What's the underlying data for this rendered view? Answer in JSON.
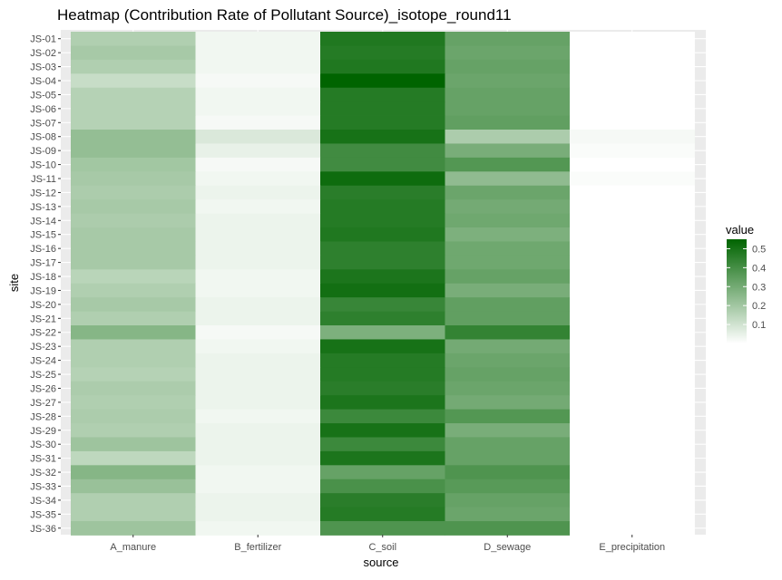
{
  "chart_data": {
    "type": "heatmap",
    "title": "Heatmap (Contribution Rate of Pollutant Source)_isotope_round11",
    "xlabel": "source",
    "ylabel": "site",
    "x_categories": [
      "A_manure",
      "B_fertilizer",
      "C_soil",
      "D_sewage",
      "E_precipitation"
    ],
    "y_categories": [
      "JS-01",
      "JS-02",
      "JS-03",
      "JS-04",
      "JS-05",
      "JS-06",
      "JS-07",
      "JS-08",
      "JS-09",
      "JS-10",
      "JS-11",
      "JS-12",
      "JS-13",
      "JS-14",
      "JS-15",
      "JS-16",
      "JS-17",
      "JS-18",
      "JS-19",
      "JS-20",
      "JS-21",
      "JS-22",
      "JS-23",
      "JS-24",
      "JS-25",
      "JS-26",
      "JS-27",
      "JS-28",
      "JS-29",
      "JS-30",
      "JS-31",
      "JS-32",
      "JS-33",
      "JS-34",
      "JS-35",
      "JS-36"
    ],
    "values": [
      [
        0.17,
        0.03,
        0.48,
        0.33,
        0.0
      ],
      [
        0.19,
        0.03,
        0.47,
        0.32,
        0.0
      ],
      [
        0.17,
        0.03,
        0.48,
        0.33,
        0.0
      ],
      [
        0.12,
        0.02,
        0.55,
        0.32,
        0.0
      ],
      [
        0.16,
        0.03,
        0.47,
        0.33,
        0.0
      ],
      [
        0.16,
        0.03,
        0.47,
        0.33,
        0.0
      ],
      [
        0.16,
        0.02,
        0.47,
        0.34,
        0.0
      ],
      [
        0.23,
        0.08,
        0.5,
        0.18,
        0.02
      ],
      [
        0.23,
        0.05,
        0.41,
        0.29,
        0.01
      ],
      [
        0.2,
        0.02,
        0.41,
        0.37,
        0.0
      ],
      [
        0.19,
        0.03,
        0.52,
        0.24,
        0.01
      ],
      [
        0.18,
        0.04,
        0.46,
        0.32,
        0.0
      ],
      [
        0.19,
        0.03,
        0.47,
        0.3,
        0.0
      ],
      [
        0.18,
        0.04,
        0.47,
        0.31,
        0.0
      ],
      [
        0.19,
        0.04,
        0.48,
        0.28,
        0.0
      ],
      [
        0.19,
        0.04,
        0.45,
        0.31,
        0.0
      ],
      [
        0.19,
        0.04,
        0.45,
        0.31,
        0.0
      ],
      [
        0.15,
        0.03,
        0.49,
        0.33,
        0.0
      ],
      [
        0.17,
        0.03,
        0.51,
        0.29,
        0.0
      ],
      [
        0.19,
        0.04,
        0.43,
        0.34,
        0.0
      ],
      [
        0.17,
        0.04,
        0.45,
        0.34,
        0.0
      ],
      [
        0.26,
        0.02,
        0.28,
        0.44,
        0.0
      ],
      [
        0.17,
        0.03,
        0.5,
        0.3,
        0.0
      ],
      [
        0.17,
        0.04,
        0.47,
        0.32,
        0.0
      ],
      [
        0.16,
        0.04,
        0.47,
        0.33,
        0.0
      ],
      [
        0.18,
        0.04,
        0.46,
        0.32,
        0.0
      ],
      [
        0.17,
        0.04,
        0.49,
        0.3,
        0.0
      ],
      [
        0.18,
        0.03,
        0.42,
        0.37,
        0.0
      ],
      [
        0.17,
        0.04,
        0.5,
        0.29,
        0.0
      ],
      [
        0.21,
        0.04,
        0.42,
        0.33,
        0.0
      ],
      [
        0.14,
        0.04,
        0.49,
        0.33,
        0.0
      ],
      [
        0.26,
        0.03,
        0.33,
        0.38,
        0.0
      ],
      [
        0.22,
        0.03,
        0.39,
        0.36,
        0.0
      ],
      [
        0.17,
        0.04,
        0.46,
        0.33,
        0.0
      ],
      [
        0.17,
        0.04,
        0.47,
        0.32,
        0.0
      ],
      [
        0.21,
        0.03,
        0.38,
        0.38,
        0.0
      ]
    ],
    "color_low": "#ffffff",
    "color_high": "#006400",
    "value_range": [
      0,
      0.55
    ],
    "legend": {
      "title": "value",
      "ticks": [
        0.1,
        0.2,
        0.3,
        0.4,
        0.5
      ],
      "tick_labels": [
        "0.1",
        "0.2",
        "0.3",
        "0.4",
        "0.5"
      ],
      "placement": "right"
    },
    "panel_background": "#ebebeb",
    "grid": true
  }
}
